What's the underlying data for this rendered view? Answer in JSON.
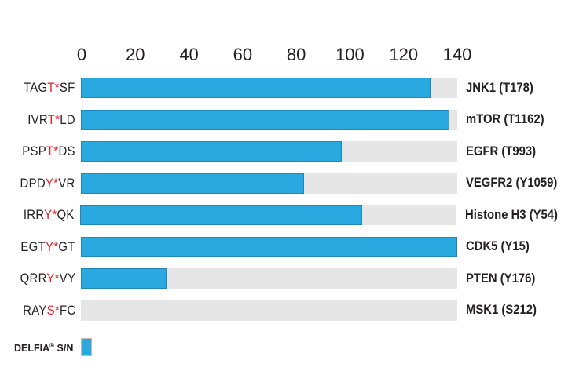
{
  "chart_data": {
    "type": "bar",
    "orientation": "horizontal",
    "title": "",
    "xlabel": "",
    "ylabel": "",
    "xlim": [
      0,
      140
    ],
    "ticks": [
      0,
      20,
      40,
      60,
      80,
      100,
      120,
      140
    ],
    "grid": false,
    "series_name": "DELFIA® S/N",
    "rows": [
      {
        "peptide_prefix": "TAG",
        "phospho": "T*",
        "peptide_suffix": "SF",
        "kinase": "JNK1 (T178)",
        "value": 130
      },
      {
        "peptide_prefix": "IVR",
        "phospho": "T*",
        "peptide_suffix": "LD",
        "kinase": "mTOR (T1162)",
        "value": 137
      },
      {
        "peptide_prefix": "PSP",
        "phospho": "T*",
        "peptide_suffix": "DS",
        "kinase": "EGFR (T993)",
        "value": 97
      },
      {
        "peptide_prefix": "DPD",
        "phospho": "Y*",
        "peptide_suffix": "VR",
        "kinase": "VEGFR2 (Y1059)",
        "value": 83
      },
      {
        "peptide_prefix": "IRR",
        "phospho": "Y*",
        "peptide_suffix": "QK",
        "kinase": "Histone H3 (Y54)",
        "value": 105
      },
      {
        "peptide_prefix": "EGT",
        "phospho": "Y*",
        "peptide_suffix": "GT",
        "kinase": "CDK5 (Y15)",
        "value": 140
      },
      {
        "peptide_prefix": "QRR",
        "phospho": "Y*",
        "peptide_suffix": "VY",
        "kinase": "PTEN (Y176)",
        "value": 32
      },
      {
        "peptide_prefix": "RAY",
        "phospho": "S*",
        "peptide_suffix": "FC",
        "kinase": "MSK1 (S212)",
        "value": 0
      }
    ],
    "legend": {
      "brand": "DELFIA",
      "reg_mark": "®",
      "suffix": " S/N",
      "position": "bottom-left"
    },
    "colors": {
      "bar": "#29A9E0",
      "bar_border": "#2187B8",
      "track": "#E6E6E6",
      "text": "#231F20",
      "phospho_red": "#EC1C24"
    }
  }
}
